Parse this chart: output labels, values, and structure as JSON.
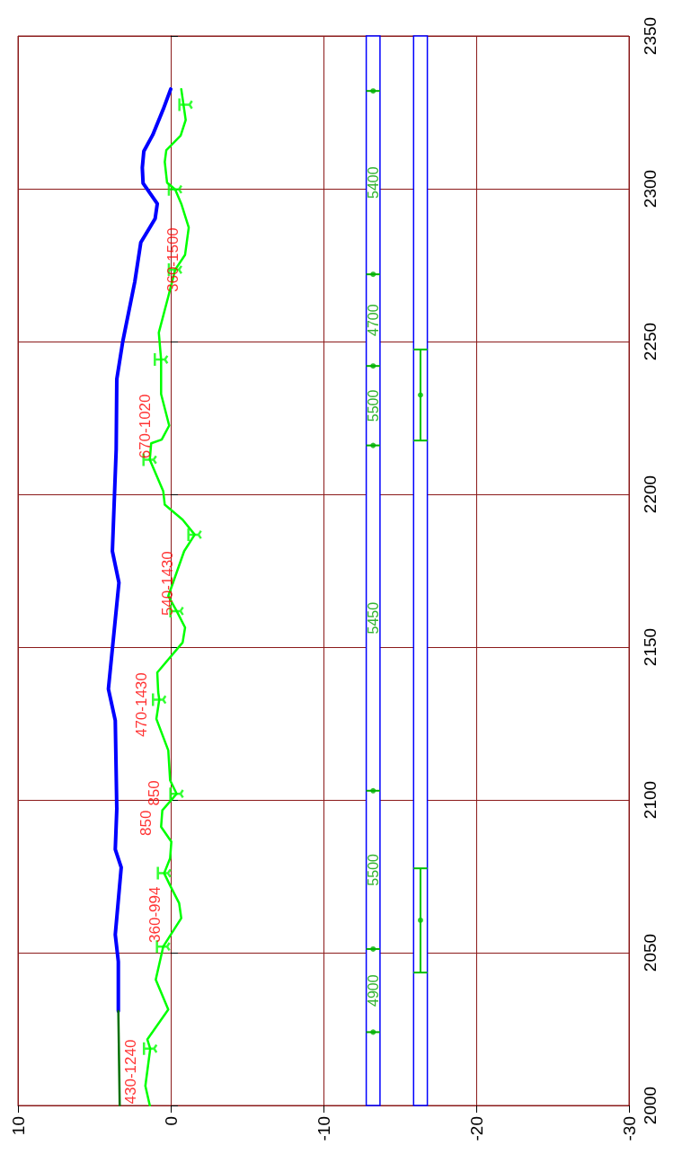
{
  "chart_data": {
    "type": "line",
    "xlim": [
      10,
      -30
    ],
    "xticks": [
      10,
      0,
      -10,
      -20,
      -30
    ],
    "ylim": [
      2000,
      2350
    ],
    "yticks": [
      2000,
      2050,
      2100,
      2150,
      2200,
      2250,
      2300,
      2350
    ],
    "grid": true,
    "series": [
      {
        "color": "#0000ff",
        "marker": "none",
        "x": [
          3.43,
          3.43,
          3.63,
          3.24,
          3.63,
          3.53,
          3.63,
          4.08,
          3.39,
          3.82,
          3.57,
          3.53,
          3.14,
          2.35,
          1.96,
          1.02,
          0.88,
          1.81,
          1.86,
          1.76,
          1.18,
          0.49,
          0.0
        ],
        "values": [
          2030.9,
          2047.1,
          2055.9,
          2077.9,
          2083.8,
          2097.1,
          2126.0,
          2136.3,
          2171.1,
          2181.4,
          2214.7,
          2237.7,
          2250.0,
          2269.6,
          2282.4,
          2290.2,
          2295.1,
          2301.8,
          2306.9,
          2312.3,
          2317.6,
          2326.0,
          2332.6
        ]
      },
      {
        "color": "#007000",
        "marker": "none",
        "x": [
          3.34,
          3.43
        ],
        "values": [
          2000,
          2030.9
        ]
      },
      {
        "color": "#00ff00",
        "marker": "none",
        "x": [
          1.37,
          1.66,
          1.34,
          1.53,
          0.16,
          0.98,
          0.49,
          -0.69,
          -0.55,
          0.0,
          0.43,
          0.04,
          -0.04,
          0.63,
          0.55,
          -0.39,
          0.04,
          0.16,
          0.94,
          0.75,
          0.82,
          0.88,
          -0.78,
          -0.94,
          -0.39,
          0.16,
          -0.88,
          -1.57,
          -0.78,
          0.39,
          0.49,
          1.37,
          1.28,
          0.59,
          0.1,
          0.63,
          0.63,
          0.78,
          0.16,
          -0.29,
          -0.94,
          -1.18,
          -0.69,
          -0.29,
          0.24,
          0.39,
          0.29,
          -0.65,
          -0.98,
          -0.69
        ],
        "values": [
          2000,
          2006.4,
          2018.6,
          2021.6,
          2031.4,
          2041.2,
          2052.0,
          2061.3,
          2066.2,
          2071.6,
          2076.0,
          2080.9,
          2086.3,
          2091.2,
          2096.6,
          2102.0,
          2106.4,
          2116.2,
          2126.5,
          2132.8,
          2135.3,
          2141.7,
          2151.5,
          2156.4,
          2161.8,
          2166.7,
          2181.4,
          2186.8,
          2191.7,
          2196.6,
          2201.0,
          2211.3,
          2216.7,
          2217.9,
          2222.5,
          2232.8,
          2244.1,
          2252.9,
          2264.7,
          2273.5,
          2278.4,
          2287.3,
          2295.1,
          2299.8,
          2302.0,
          2308.8,
          2312.6,
          2317.4,
          2322.5,
          2332.6
        ]
      },
      {
        "type": "scatter",
        "color": "#00ff00",
        "marker": "cross",
        "x": [
          1.34,
          0.49,
          0.43,
          -0.39,
          0.75,
          -0.39,
          -1.57,
          1.37,
          0.63,
          -0.29,
          -0.29,
          -0.98
        ],
        "values": [
          2018.6,
          2052.0,
          2076.0,
          2102.0,
          2132.8,
          2161.8,
          2186.8,
          2211.3,
          2244.1,
          2273.5,
          2299.8,
          2327.5
        ]
      },
      {
        "type": "scatter",
        "color": "#00b000",
        "marker": "circle",
        "x": [
          -13.25,
          -13.25,
          -13.25,
          -13.25,
          -13.25,
          -13.25,
          -13.25
        ],
        "values": [
          2024,
          2051.2,
          2103,
          2216,
          2242,
          2272,
          2332
        ],
        "xerrors": [
          0.45,
          0.45,
          0.45,
          0.45,
          0.45,
          0.45,
          0.45
        ]
      },
      {
        "type": "scatter",
        "color": "#00c000",
        "marker": "circle",
        "x": [
          -16.35,
          -16.35
        ],
        "values": [
          2060.6,
          2232.5
        ],
        "errors": [
          [
            2043.5,
            2077.6
          ],
          [
            2217.6,
            2247.4
          ]
        ]
      }
    ],
    "bands": [
      {
        "axis": "x",
        "from": -13.7,
        "to": -12.8,
        "color": "#0000ff"
      },
      {
        "axis": "x",
        "from": -16.8,
        "to": -15.9,
        "color": "#0000ff"
      }
    ],
    "annotations": [
      {
        "text": "430-1240",
        "x": 1.53,
        "y": 2021.6
      },
      {
        "text": "360-994",
        "x": 0.0,
        "y": 2071.6
      },
      {
        "text": "850",
        "x": 0.55,
        "y": 2096.6
      },
      {
        "text": "850",
        "x": 0.04,
        "y": 2106.4
      },
      {
        "text": "470-1430",
        "x": 0.88,
        "y": 2141.7
      },
      {
        "text": "540-1430",
        "x": -0.88,
        "y": 2181.4
      },
      {
        "text": "670-1020",
        "x": 0.63,
        "y": 2232.8
      },
      {
        "text": "360-1500",
        "x": -1.18,
        "y": 2287.3
      },
      "4900",
      "5500",
      "5450",
      "5500",
      "4700",
      "5400"
    ]
  }
}
